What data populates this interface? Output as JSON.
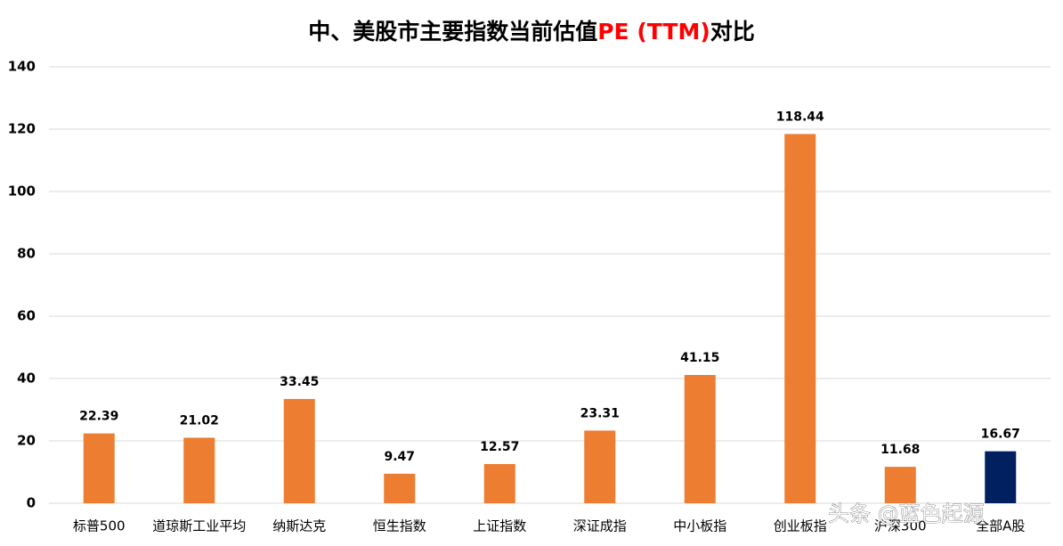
{
  "chart_data": {
    "type": "bar",
    "title_parts": [
      {
        "text": "中、美股市主要指数当前估值",
        "color": "#000000"
      },
      {
        "text": "PE (TTM)",
        "color": "#ff0000"
      },
      {
        "text": "对比",
        "color": "#000000"
      }
    ],
    "categories": [
      "标普500",
      "道琼斯工业平均",
      "纳斯达克",
      "恒生指数",
      "上证指数",
      "深证成指",
      "中小板指",
      "创业板指",
      "沪深300",
      "全部A股"
    ],
    "values": [
      22.39,
      21.02,
      33.45,
      9.47,
      12.57,
      23.31,
      41.15,
      118.44,
      11.68,
      16.67
    ],
    "colors": [
      "#ed7d31",
      "#ed7d31",
      "#ed7d31",
      "#ed7d31",
      "#ed7d31",
      "#ed7d31",
      "#ed7d31",
      "#ed7d31",
      "#ed7d31",
      "#002060"
    ],
    "ylim": [
      0,
      140
    ],
    "yticks": [
      0,
      20,
      40,
      60,
      80,
      100,
      120,
      140
    ],
    "grid": true,
    "watermark": "头条 @蓝色起源"
  }
}
